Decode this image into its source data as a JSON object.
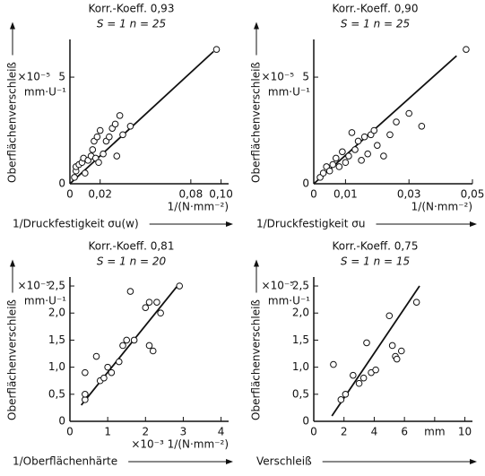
{
  "chart_data": [
    {
      "type": "scatter",
      "title": "Korr.-Koeff. 0,93",
      "subtitle": "S = 1   n = 25",
      "y_label": "Oberflächenverschleiß",
      "y_unit_scale": "×10⁻⁵",
      "y_unit": "mm·U⁻¹",
      "x_label": "1/Druckfestigkeit σu(w)",
      "x_unit": "1/(N·mm⁻²)",
      "x": [
        0.003,
        0.004,
        0.004,
        0.006,
        0.008,
        0.009,
        0.012,
        0.014,
        0.015,
        0.016,
        0.017,
        0.018,
        0.019,
        0.02,
        0.022,
        0.024,
        0.026,
        0.028,
        0.03,
        0.031,
        0.033,
        0.04,
        0.035,
        0.097,
        0.01
      ],
      "values": [
        0.3,
        0.6,
        0.8,
        0.9,
        1.0,
        1.2,
        1.1,
        1.3,
        1.6,
        2.0,
        1.2,
        2.2,
        1.0,
        2.5,
        1.4,
        2.0,
        2.2,
        2.6,
        2.8,
        1.3,
        3.2,
        2.7,
        2.3,
        6.3,
        0.5
      ],
      "fit": {
        "x": [
          0,
          0.095
        ],
        "values": [
          0,
          6.2
        ]
      },
      "xlim": [
        0,
        0.105
      ],
      "ylim": [
        0,
        6.6
      ],
      "xticks": [
        0,
        {
          "value": 0.02,
          "label": "0,02"
        },
        {
          "value": 0.08,
          "label": "0,08"
        },
        {
          "value": 0.1,
          "label": "0,10"
        }
      ],
      "yticks": [
        0,
        5
      ]
    },
    {
      "type": "scatter",
      "title": "Korr.-Koeff. 0,90",
      "subtitle": "S = 1   n = 25",
      "y_label": "Oberflächenverschleiß",
      "y_unit_scale": "×10⁻⁵",
      "y_unit": "mm·U⁻¹",
      "x_label": "1/Druckfestigkeit σu",
      "x_unit": "1/(N·mm⁻²)",
      "x": [
        0.002,
        0.003,
        0.004,
        0.005,
        0.006,
        0.007,
        0.008,
        0.009,
        0.01,
        0.011,
        0.012,
        0.013,
        0.014,
        0.015,
        0.016,
        0.017,
        0.018,
        0.019,
        0.02,
        0.022,
        0.024,
        0.026,
        0.03,
        0.034,
        0.048
      ],
      "values": [
        0.3,
        0.5,
        0.8,
        0.6,
        0.9,
        1.2,
        0.8,
        1.5,
        1.0,
        1.3,
        2.4,
        1.6,
        2.0,
        1.1,
        2.2,
        1.4,
        2.3,
        2.5,
        1.8,
        1.3,
        2.3,
        2.9,
        3.3,
        2.7,
        6.3
      ],
      "fit": {
        "x": [
          0,
          0.045
        ],
        "values": [
          0,
          6.0
        ]
      },
      "xlim": [
        0,
        0.05
      ],
      "ylim": [
        0,
        6.6
      ],
      "xticks": [
        0,
        {
          "value": 0.01,
          "label": "0,01"
        },
        {
          "value": 0.03,
          "label": "0,03"
        },
        {
          "value": 0.05,
          "label": "0,05"
        }
      ],
      "yticks": [
        0,
        5
      ]
    },
    {
      "type": "scatter",
      "title": "Korr.-Koeff. 0,81",
      "subtitle": "S = 1   n = 20",
      "y_label": "Oberflächenverschleiß",
      "y_unit_scale": "×10⁻⁵",
      "y_unit": "mm·U⁻¹",
      "x_label": "1/Oberflächenhärte",
      "x_unit": "×10⁻³ 1/(N·mm⁻²)",
      "x": [
        0.4,
        0.4,
        0.4,
        0.7,
        0.8,
        0.9,
        1.0,
        1.1,
        1.3,
        1.4,
        1.5,
        1.6,
        1.7,
        2.0,
        2.1,
        2.1,
        2.2,
        2.3,
        2.4,
        2.9
      ],
      "values": [
        0.4,
        0.5,
        0.9,
        1.2,
        0.75,
        0.8,
        1.0,
        0.9,
        1.1,
        1.4,
        1.5,
        2.4,
        1.5,
        2.1,
        1.4,
        2.2,
        1.3,
        2.2,
        2.0,
        2.5
      ],
      "fit": {
        "x": [
          0.3,
          2.9
        ],
        "values": [
          0.3,
          2.55
        ]
      },
      "xlim": [
        0,
        4.2
      ],
      "ylim": [
        0,
        2.6
      ],
      "xticks": [
        0,
        1,
        2,
        3,
        4
      ],
      "yticks": [
        0,
        {
          "value": 0.5,
          "label": "0,5"
        },
        {
          "value": 1,
          "label": "1,0"
        },
        {
          "value": 1.5,
          "label": "1,5"
        },
        {
          "value": 2,
          "label": "2,0"
        },
        {
          "value": 2.5,
          "label": "2,5"
        }
      ]
    },
    {
      "type": "scatter",
      "title": "Korr.-Koeff. 0,75",
      "subtitle": "S = 1   n = 15",
      "y_label": "Oberflächenverschleiß",
      "y_unit_scale": "×10⁻⁵",
      "y_unit": "mm·U⁻¹",
      "x_label": "Verschleiß",
      "x": [
        1.3,
        1.8,
        2.1,
        2.6,
        3.0,
        3.3,
        3.5,
        3.8,
        4.1,
        5.0,
        5.2,
        5.4,
        5.5,
        5.8,
        6.8
      ],
      "values": [
        1.05,
        0.4,
        0.5,
        0.85,
        0.7,
        0.8,
        1.45,
        0.9,
        0.95,
        1.95,
        1.4,
        1.2,
        1.15,
        1.3,
        2.2
      ],
      "fit": {
        "x": [
          1.2,
          7.0
        ],
        "values": [
          0.1,
          2.5
        ]
      },
      "xlim": [
        0,
        10.5
      ],
      "ylim": [
        0,
        2.6
      ],
      "xticks": [
        0,
        2,
        4,
        6,
        {
          "value": 8,
          "label": "mm"
        },
        10
      ],
      "yticks": [
        0,
        {
          "value": 0.5,
          "label": "0,5"
        },
        {
          "value": 1,
          "label": "1,0"
        },
        {
          "value": 1.5,
          "label": "1,5"
        },
        {
          "value": 2,
          "label": "2,0"
        },
        {
          "value": 2.5,
          "label": "2,5"
        }
      ]
    }
  ]
}
